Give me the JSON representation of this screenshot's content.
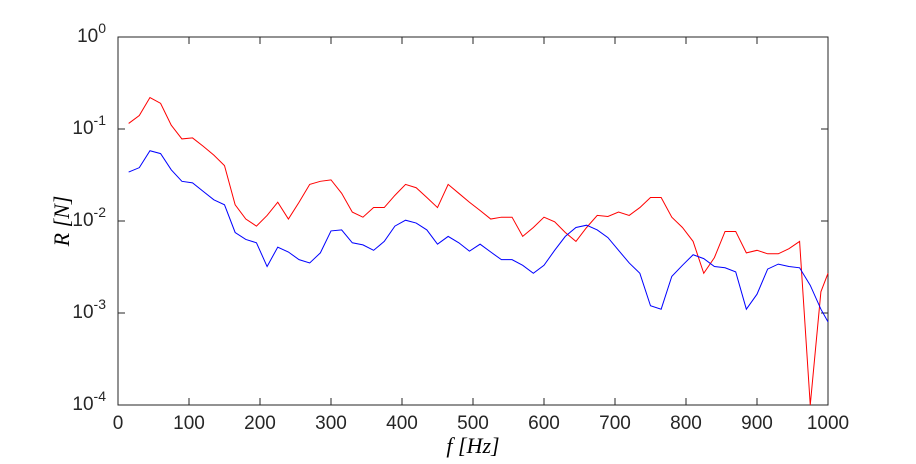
{
  "chart_data": {
    "type": "line",
    "x_label": "f [Hz]",
    "y_label": "R [N]",
    "x": [
      15,
      30,
      45,
      60,
      75,
      90,
      105,
      120,
      135,
      150,
      165,
      180,
      195,
      210,
      225,
      240,
      255,
      270,
      285,
      300,
      315,
      330,
      345,
      360,
      375,
      390,
      405,
      420,
      435,
      450,
      465,
      480,
      495,
      510,
      525,
      540,
      555,
      570,
      585,
      600,
      615,
      630,
      645,
      660,
      675,
      690,
      705,
      720,
      735,
      750,
      765,
      780,
      795,
      810,
      825,
      840,
      855,
      870,
      885,
      900,
      915,
      930,
      945,
      960,
      975,
      990,
      1000
    ],
    "series": [
      {
        "name": "red",
        "color": "#ff0000",
        "values": [
          0.115,
          0.14,
          0.22,
          0.19,
          0.11,
          0.078,
          0.08,
          0.065,
          0.052,
          0.04,
          0.015,
          0.0105,
          0.0088,
          0.0115,
          0.016,
          0.0105,
          0.016,
          0.025,
          0.027,
          0.028,
          0.02,
          0.0125,
          0.011,
          0.014,
          0.014,
          0.019,
          0.025,
          0.023,
          0.018,
          0.014,
          0.025,
          0.02,
          0.016,
          0.013,
          0.0105,
          0.011,
          0.011,
          0.0068,
          0.0085,
          0.011,
          0.0098,
          0.0075,
          0.006,
          0.0085,
          0.0115,
          0.0112,
          0.0125,
          0.0115,
          0.014,
          0.018,
          0.018,
          0.011,
          0.0085,
          0.006,
          0.0027,
          0.004,
          0.0077,
          0.0077,
          0.0045,
          0.0048,
          0.0044,
          0.0044,
          0.005,
          0.006,
          0.0001,
          0.0017,
          0.0027
        ]
      },
      {
        "name": "blue",
        "color": "#0000ff",
        "values": [
          0.034,
          0.038,
          0.058,
          0.054,
          0.036,
          0.027,
          0.026,
          0.021,
          0.017,
          0.015,
          0.0075,
          0.0063,
          0.0058,
          0.0032,
          0.0052,
          0.0046,
          0.0038,
          0.0035,
          0.0045,
          0.0078,
          0.008,
          0.0058,
          0.0055,
          0.0048,
          0.006,
          0.0088,
          0.0102,
          0.0095,
          0.008,
          0.0056,
          0.0068,
          0.0058,
          0.0047,
          0.0056,
          0.0046,
          0.0038,
          0.0038,
          0.0033,
          0.0027,
          0.0033,
          0.0048,
          0.0068,
          0.0085,
          0.009,
          0.008,
          0.0066,
          0.0048,
          0.0035,
          0.0027,
          0.0012,
          0.0011,
          0.0025,
          0.0033,
          0.0043,
          0.0039,
          0.0032,
          0.0031,
          0.0028,
          0.0011,
          0.0016,
          0.003,
          0.0034,
          0.0032,
          0.0031,
          0.002,
          0.0011,
          0.0008
        ]
      }
    ],
    "xlim": [
      0,
      1000
    ],
    "xticks": [
      0,
      100,
      200,
      300,
      400,
      500,
      600,
      700,
      800,
      900,
      1000
    ],
    "ylim": [
      0.0001,
      1
    ],
    "log_y": true,
    "yticks": [
      {
        "value": 0.0001,
        "label": "10^-4"
      },
      {
        "value": 0.001,
        "label": "10^-3"
      },
      {
        "value": 0.01,
        "label": "10^-2"
      },
      {
        "value": 0.1,
        "label": "10^-1"
      },
      {
        "value": 1,
        "label": "10^0"
      }
    ],
    "grid": false
  }
}
